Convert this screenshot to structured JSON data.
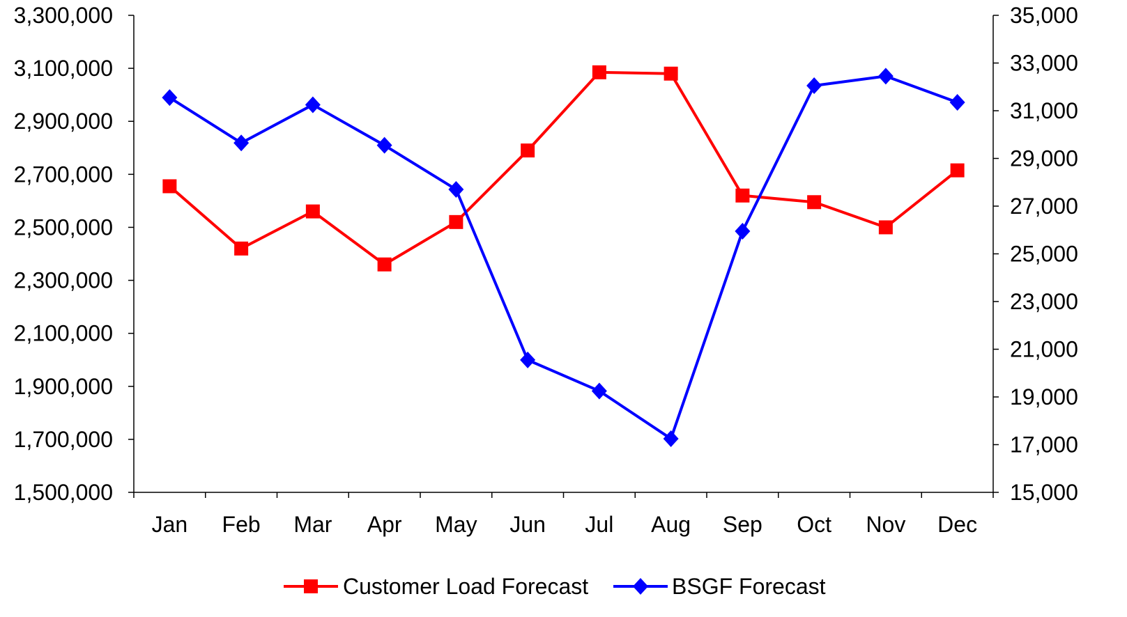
{
  "chart_data": {
    "type": "line",
    "title": "",
    "xlabel": "",
    "ylabel": "",
    "categories": [
      "Jan",
      "Feb",
      "Mar",
      "Apr",
      "May",
      "Jun",
      "Jul",
      "Aug",
      "Sep",
      "Oct",
      "Nov",
      "Dec"
    ],
    "y_left": {
      "min": 1500000,
      "max": 3300000,
      "step": 200000,
      "tick_labels": [
        "1,500,000",
        "1,700,000",
        "1,900,000",
        "2,100,000",
        "2,300,000",
        "2,500,000",
        "2,700,000",
        "2,900,000",
        "3,100,000",
        "3,300,000"
      ]
    },
    "y_right": {
      "min": 15000,
      "max": 35000,
      "step": 2000,
      "tick_labels": [
        "15,000",
        "17,000",
        "19,000",
        "21,000",
        "23,000",
        "25,000",
        "27,000",
        "29,000",
        "31,000",
        "33,000",
        "35,000"
      ]
    },
    "series": [
      {
        "name": "Customer Load Forecast",
        "axis": "left",
        "color": "#FF0000",
        "marker": "square",
        "values": [
          2655000,
          2420000,
          2560000,
          2360000,
          2520000,
          2790000,
          3085000,
          3080000,
          2620000,
          2595000,
          2500000,
          2715000
        ]
      },
      {
        "name": "BSGF Forecast",
        "axis": "right",
        "color": "#0000FF",
        "marker": "diamond",
        "values": [
          31550,
          29650,
          31250,
          29550,
          27700,
          20550,
          19250,
          17250,
          25950,
          32050,
          32450,
          31350
        ]
      }
    ],
    "grid": false,
    "legend_position": "bottom"
  }
}
